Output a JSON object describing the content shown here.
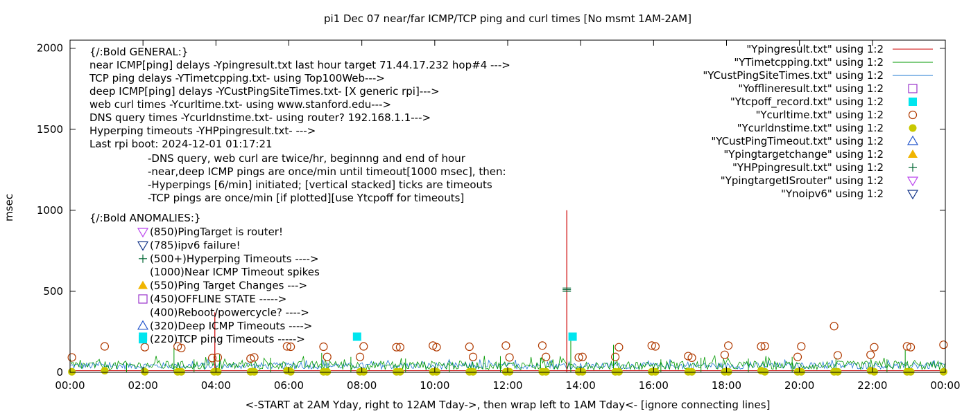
{
  "chart_data": {
    "type": "line",
    "title": "pi1 Dec 07  near/far ICMP/TCP ping and curl times [No msmt 1AM-2AM]",
    "xlabel": "<-START at 2AM Yday, right to 12AM Tday->, then wrap left to 1AM Tday<- [ignore connecting lines]",
    "ylabel": "msec",
    "xlim": [
      0,
      24
    ],
    "ylim": [
      0,
      2050
    ],
    "xticks": [
      "00:00",
      "02:00",
      "04:00",
      "06:00",
      "08:00",
      "10:00",
      "12:00",
      "14:00",
      "16:00",
      "18:00",
      "20:00",
      "22:00",
      "00:00"
    ],
    "yticks": [
      "0",
      "500",
      "1000",
      "1500",
      "2000"
    ],
    "grid": false,
    "legend_position": "top-right",
    "legend": [
      {
        "label": "\"Ypingresult.txt\" using 1:2",
        "color": "#cc0000",
        "marker": "line"
      },
      {
        "label": "\"YTimetcpping.txt\" using 1:2",
        "color": "#009900",
        "marker": "line"
      },
      {
        "label": "\"YCustPingSiteTimes.txt\" using 1:2",
        "color": "#1f78d1",
        "marker": "line"
      },
      {
        "label": "\"Yofflineresult.txt\" using 1:2",
        "color": "#9933cc",
        "marker": "open-square"
      },
      {
        "label": "\"Ytcpoff_record.txt\" using 1:2",
        "color": "#00e5ee",
        "marker": "filled-square"
      },
      {
        "label": "\"Ycurltime.txt\" using 1:2",
        "color": "#b03a00",
        "marker": "open-circle"
      },
      {
        "label": "\"Ycurldnstime.txt\" using 1:2",
        "color": "#c8c800",
        "marker": "filled-circle"
      },
      {
        "label": "\"YCustPingTimeout.txt\" using 1:2",
        "color": "#2255cc",
        "marker": "open-triangle-up"
      },
      {
        "label": "\"Ypingtargetchange\" using 1:2",
        "color": "#f0b400",
        "marker": "filled-triangle-up"
      },
      {
        "label": "\"YHPpingresult.txt\" using 1:2",
        "color": "#006633",
        "marker": "plus"
      },
      {
        "label": "\"YpingtargetISrouter\" using 1:2",
        "color": "#bb44ee",
        "marker": "open-triangle-down"
      },
      {
        "label": "\"Ynoipv6\" using 1:2",
        "color": "#113388",
        "marker": "open-triangle-down"
      }
    ],
    "annotations": {
      "general": [
        "{/:Bold GENERAL:}",
        "near ICMP[ping] delays -Ypingresult.txt last hour target 71.44.17.232 hop#4 --->",
        "TCP ping delays -YTimetcpping.txt- using Top100Web--->",
        "deep ICMP[ping] delays -YCustPingSiteTimes.txt- [X generic rpi]--->",
        "web curl times -Ycurltime.txt- using www.stanford.edu--->",
        "DNS query times -Ycurldnstime.txt- using router? 192.168.1.1--->",
        "Hyperping timeouts -YHPpingresult.txt- --->",
        "Last rpi boot: 2024-12-01 01:17:21"
      ],
      "notes": [
        "-DNS query, web curl are twice/hr, beginnng and end of hour",
        "-near,deep ICMP pings are once/min until timeout[1000 msec], then:",
        "  -Hyperpings [6/min] initiated; [vertical stacked] ticks are timeouts",
        "-TCP pings are once/min [if plotted][use Ytcpoff for timeouts]"
      ],
      "anomalies_title": "{/:Bold ANOMALIES:}",
      "anomalies": [
        {
          "text": "(850)PingTarget is router!",
          "marker": "open-triangle-down",
          "color": "#bb44ee"
        },
        {
          "text": "(785)ipv6 failure!",
          "marker": "open-triangle-down",
          "color": "#113388"
        },
        {
          "text": "(500+)Hyperping Timeouts ---->",
          "marker": "plus",
          "color": "#006633"
        },
        {
          "text": "(1000)Near ICMP Timeout spikes",
          "marker": "none",
          "color": ""
        },
        {
          "text": "(550)Ping Target Changes --->",
          "marker": "filled-triangle-up",
          "color": "#f0b400"
        },
        {
          "text": "(450)OFFLINE STATE ----->",
          "marker": "open-square",
          "color": "#9933cc"
        },
        {
          "text": "(400)Reboot/powercycle? ---->",
          "marker": "none",
          "color": ""
        },
        {
          "text": "(320)Deep ICMP Timeouts ---->",
          "marker": "open-triangle-up",
          "color": "#2255cc"
        },
        {
          "text": "(220)TCP ping Timeouts ----->",
          "marker": "filled-square",
          "color": "#00e5ee"
        }
      ]
    },
    "spikes_ping": [
      {
        "x": 3.97,
        "y": 370
      },
      {
        "x": 13.62,
        "y": 1000
      }
    ],
    "spikes_tcp": [
      {
        "x": 1.55,
        "y": 60
      },
      {
        "x": 2.85,
        "y": 150
      },
      {
        "x": 3.4,
        "y": 80
      },
      {
        "x": 4.1,
        "y": 110
      },
      {
        "x": 5.5,
        "y": 90
      },
      {
        "x": 6.9,
        "y": 120
      },
      {
        "x": 7.7,
        "y": 95
      },
      {
        "x": 9.2,
        "y": 85
      },
      {
        "x": 10.4,
        "y": 70
      },
      {
        "x": 11.8,
        "y": 100
      },
      {
        "x": 12.9,
        "y": 90
      },
      {
        "x": 13.73,
        "y": 230
      },
      {
        "x": 14.9,
        "y": 170
      },
      {
        "x": 16.2,
        "y": 80
      },
      {
        "x": 17.3,
        "y": 90
      },
      {
        "x": 18.6,
        "y": 85
      },
      {
        "x": 19.8,
        "y": 95
      },
      {
        "x": 21.0,
        "y": 90
      },
      {
        "x": 22.4,
        "y": 80
      },
      {
        "x": 22.9,
        "y": 140
      }
    ],
    "hyperping_timeouts": [
      {
        "x": 13.62,
        "y": 500
      },
      {
        "x": 13.62,
        "y": 510
      },
      {
        "x": 13.62,
        "y": 520
      }
    ],
    "tcp_timeouts": [
      {
        "x": 2.0,
        "y": 220
      },
      {
        "x": 7.87,
        "y": 220
      },
      {
        "x": 13.78,
        "y": 220
      }
    ],
    "curltime": [
      {
        "x": 0.05,
        "y": 92
      },
      {
        "x": 0.95,
        "y": 160
      },
      {
        "x": 2.05,
        "y": 155
      },
      {
        "x": 2.95,
        "y": 160
      },
      {
        "x": 3.05,
        "y": 150
      },
      {
        "x": 3.9,
        "y": 88
      },
      {
        "x": 4.05,
        "y": 92
      },
      {
        "x": 4.95,
        "y": 85
      },
      {
        "x": 5.05,
        "y": 92
      },
      {
        "x": 5.95,
        "y": 160
      },
      {
        "x": 6.05,
        "y": 158
      },
      {
        "x": 6.95,
        "y": 158
      },
      {
        "x": 7.05,
        "y": 95
      },
      {
        "x": 7.95,
        "y": 95
      },
      {
        "x": 8.05,
        "y": 160
      },
      {
        "x": 8.95,
        "y": 155
      },
      {
        "x": 9.05,
        "y": 155
      },
      {
        "x": 9.95,
        "y": 165
      },
      {
        "x": 10.05,
        "y": 155
      },
      {
        "x": 10.95,
        "y": 158
      },
      {
        "x": 11.05,
        "y": 95
      },
      {
        "x": 11.95,
        "y": 165
      },
      {
        "x": 12.05,
        "y": 92
      },
      {
        "x": 12.95,
        "y": 165
      },
      {
        "x": 13.05,
        "y": 95
      },
      {
        "x": 13.95,
        "y": 92
      },
      {
        "x": 14.05,
        "y": 95
      },
      {
        "x": 14.95,
        "y": 95
      },
      {
        "x": 15.05,
        "y": 155
      },
      {
        "x": 15.95,
        "y": 165
      },
      {
        "x": 16.05,
        "y": 160
      },
      {
        "x": 16.95,
        "y": 100
      },
      {
        "x": 17.05,
        "y": 90
      },
      {
        "x": 17.95,
        "y": 108
      },
      {
        "x": 18.05,
        "y": 165
      },
      {
        "x": 18.95,
        "y": 160
      },
      {
        "x": 19.05,
        "y": 162
      },
      {
        "x": 19.95,
        "y": 95
      },
      {
        "x": 20.05,
        "y": 160
      },
      {
        "x": 20.95,
        "y": 285
      },
      {
        "x": 21.05,
        "y": 105
      },
      {
        "x": 21.95,
        "y": 108
      },
      {
        "x": 22.05,
        "y": 155
      },
      {
        "x": 22.95,
        "y": 160
      },
      {
        "x": 23.05,
        "y": 155
      },
      {
        "x": 23.95,
        "y": 170
      }
    ],
    "curldnstime": [
      {
        "x": 0.05,
        "y": 3
      },
      {
        "x": 0.95,
        "y": 10
      },
      {
        "x": 2.05,
        "y": 3
      },
      {
        "x": 2.95,
        "y": 3
      },
      {
        "x": 3.05,
        "y": 3
      },
      {
        "x": 3.95,
        "y": 3
      },
      {
        "x": 4.05,
        "y": 3
      },
      {
        "x": 4.95,
        "y": 3
      },
      {
        "x": 5.05,
        "y": 3
      },
      {
        "x": 5.95,
        "y": 10
      },
      {
        "x": 6.05,
        "y": 3
      },
      {
        "x": 6.95,
        "y": 3
      },
      {
        "x": 7.05,
        "y": 3
      },
      {
        "x": 7.95,
        "y": 3
      },
      {
        "x": 8.05,
        "y": 3
      },
      {
        "x": 8.95,
        "y": 3
      },
      {
        "x": 9.05,
        "y": 3
      },
      {
        "x": 9.95,
        "y": 3
      },
      {
        "x": 10.05,
        "y": 3
      },
      {
        "x": 10.95,
        "y": 3
      },
      {
        "x": 11.05,
        "y": 3
      },
      {
        "x": 11.95,
        "y": 3
      },
      {
        "x": 12.05,
        "y": 3
      },
      {
        "x": 12.95,
        "y": 3
      },
      {
        "x": 13.05,
        "y": 3
      },
      {
        "x": 13.95,
        "y": 3
      },
      {
        "x": 14.05,
        "y": 3
      },
      {
        "x": 14.95,
        "y": 3
      },
      {
        "x": 15.05,
        "y": 3
      },
      {
        "x": 15.95,
        "y": 3
      },
      {
        "x": 16.05,
        "y": 3
      },
      {
        "x": 16.95,
        "y": 3
      },
      {
        "x": 17.05,
        "y": 3
      },
      {
        "x": 17.95,
        "y": 3
      },
      {
        "x": 18.05,
        "y": 3
      },
      {
        "x": 18.95,
        "y": 10
      },
      {
        "x": 19.05,
        "y": 3
      },
      {
        "x": 19.95,
        "y": 3
      },
      {
        "x": 20.05,
        "y": 3
      },
      {
        "x": 20.95,
        "y": 3
      },
      {
        "x": 21.05,
        "y": 3
      },
      {
        "x": 21.95,
        "y": 10
      },
      {
        "x": 22.05,
        "y": 3
      },
      {
        "x": 22.95,
        "y": 3
      },
      {
        "x": 23.05,
        "y": 3
      },
      {
        "x": 23.95,
        "y": 3
      }
    ],
    "baseline_ping_msec": 10,
    "baseline_tcp_range_msec": [
      15,
      70
    ],
    "baseline_deep_range_msec": [
      20,
      60
    ]
  }
}
